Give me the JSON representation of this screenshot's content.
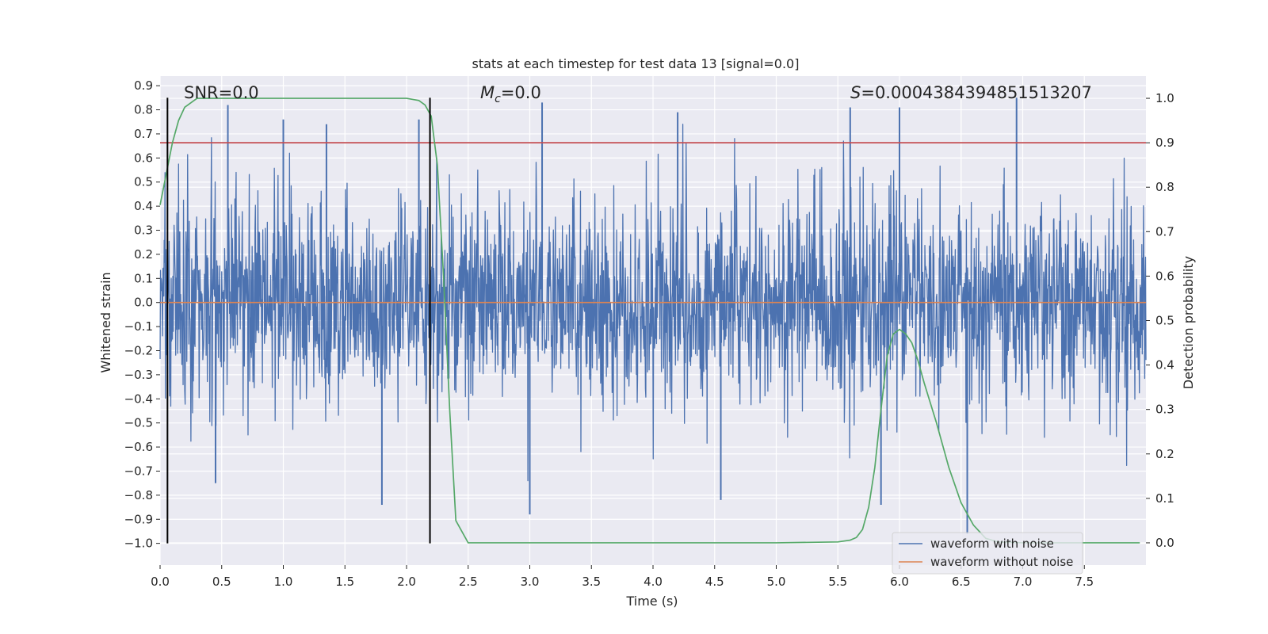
{
  "chart_data": {
    "type": "line",
    "title": "stats at each timestep for test data 13 [signal=0.0]",
    "xlabel": "Time (s)",
    "ylabel": "Whitened strain",
    "y2label": "Detection probability",
    "xlim": [
      0.0,
      8.0
    ],
    "ylim": [
      -1.09,
      0.94
    ],
    "y2lim": [
      -0.05,
      1.05
    ],
    "xticks": [
      "0.0",
      "0.5",
      "1.0",
      "1.5",
      "2.0",
      "2.5",
      "3.0",
      "3.5",
      "4.0",
      "4.5",
      "5.0",
      "5.5",
      "6.0",
      "6.5",
      "7.0",
      "7.5"
    ],
    "yticks": [
      "0.9",
      "0.8",
      "0.7",
      "0.6",
      "0.5",
      "0.4",
      "0.3",
      "0.2",
      "0.1",
      "0.0",
      "−0.1",
      "−0.2",
      "−0.3",
      "−0.4",
      "−0.5",
      "−0.6",
      "−0.7",
      "−0.8",
      "−0.9",
      "−1.0"
    ],
    "y2ticks": [
      "1.0",
      "0.9",
      "0.8",
      "0.7",
      "0.6",
      "0.5",
      "0.4",
      "0.3",
      "0.2",
      "0.1",
      "0.0"
    ],
    "grid": true,
    "legend_position": "bottom-right",
    "annotations": {
      "snr": "SNR=0.0",
      "mc_symbol": "M",
      "mc_sub": "c",
      "mc_value": "=0.0",
      "s_symbol": "S",
      "s_value": "=0.0004384394851513207"
    },
    "series": [
      {
        "name": "waveform with noise",
        "color": "#4c72b0",
        "axis": "left",
        "x_range": [
          0.0,
          8.0
        ],
        "envelope_peaks": [
          {
            "x": 0.55,
            "y": 0.82
          },
          {
            "x": 1.0,
            "y": 0.76
          },
          {
            "x": 1.35,
            "y": 0.74
          },
          {
            "x": 2.1,
            "y": 0.76
          },
          {
            "x": 3.1,
            "y": 0.83
          },
          {
            "x": 4.2,
            "y": 0.79
          },
          {
            "x": 5.6,
            "y": 0.81
          },
          {
            "x": 6.0,
            "y": 0.81
          },
          {
            "x": 6.95,
            "y": 0.85
          },
          {
            "x": 1.8,
            "y": -0.84
          },
          {
            "x": 3.0,
            "y": -0.88
          },
          {
            "x": 4.55,
            "y": -0.82
          },
          {
            "x": 5.85,
            "y": -0.84
          },
          {
            "x": 6.55,
            "y": -0.96
          },
          {
            "x": 0.45,
            "y": -0.75
          }
        ]
      },
      {
        "name": "waveform without noise",
        "color": "#dd8452",
        "axis": "left",
        "x": [
          0.0,
          8.0
        ],
        "y": [
          0.0,
          0.0
        ]
      },
      {
        "name": "",
        "color": "#55a868",
        "axis": "right",
        "x": [
          0.0,
          0.05,
          0.1,
          0.15,
          0.2,
          0.25,
          0.3,
          0.4,
          0.5,
          1.0,
          1.5,
          2.0,
          2.1,
          2.15,
          2.2,
          2.25,
          2.3,
          2.35,
          2.4,
          2.5,
          3.0,
          4.0,
          5.0,
          5.5,
          5.6,
          5.65,
          5.7,
          5.75,
          5.8,
          5.85,
          5.9,
          5.95,
          6.0,
          6.05,
          6.1,
          6.15,
          6.2,
          6.3,
          6.4,
          6.5,
          6.6,
          6.7,
          6.8,
          7.0,
          7.5,
          7.95
        ],
        "y": [
          0.76,
          0.83,
          0.9,
          0.95,
          0.98,
          0.99,
          1.0,
          1.0,
          1.0,
          1.0,
          1.0,
          1.0,
          0.995,
          0.985,
          0.96,
          0.85,
          0.6,
          0.3,
          0.05,
          0.0,
          0.0,
          0.0,
          0.0,
          0.002,
          0.006,
          0.012,
          0.03,
          0.08,
          0.17,
          0.3,
          0.42,
          0.47,
          0.48,
          0.47,
          0.45,
          0.41,
          0.36,
          0.27,
          0.17,
          0.09,
          0.04,
          0.01,
          0.002,
          0.0,
          0.0,
          0.0
        ]
      },
      {
        "name": "",
        "color": "#c44e52",
        "axis": "right",
        "x": [
          0.0,
          8.0
        ],
        "y": [
          0.9,
          0.9
        ]
      }
    ],
    "vlines": [
      {
        "x": 0.06,
        "y_range": [
          -1.0,
          0.85
        ],
        "color": "#000000"
      },
      {
        "x": 2.19,
        "y_range": [
          -1.0,
          0.85
        ],
        "color": "#000000"
      }
    ]
  }
}
